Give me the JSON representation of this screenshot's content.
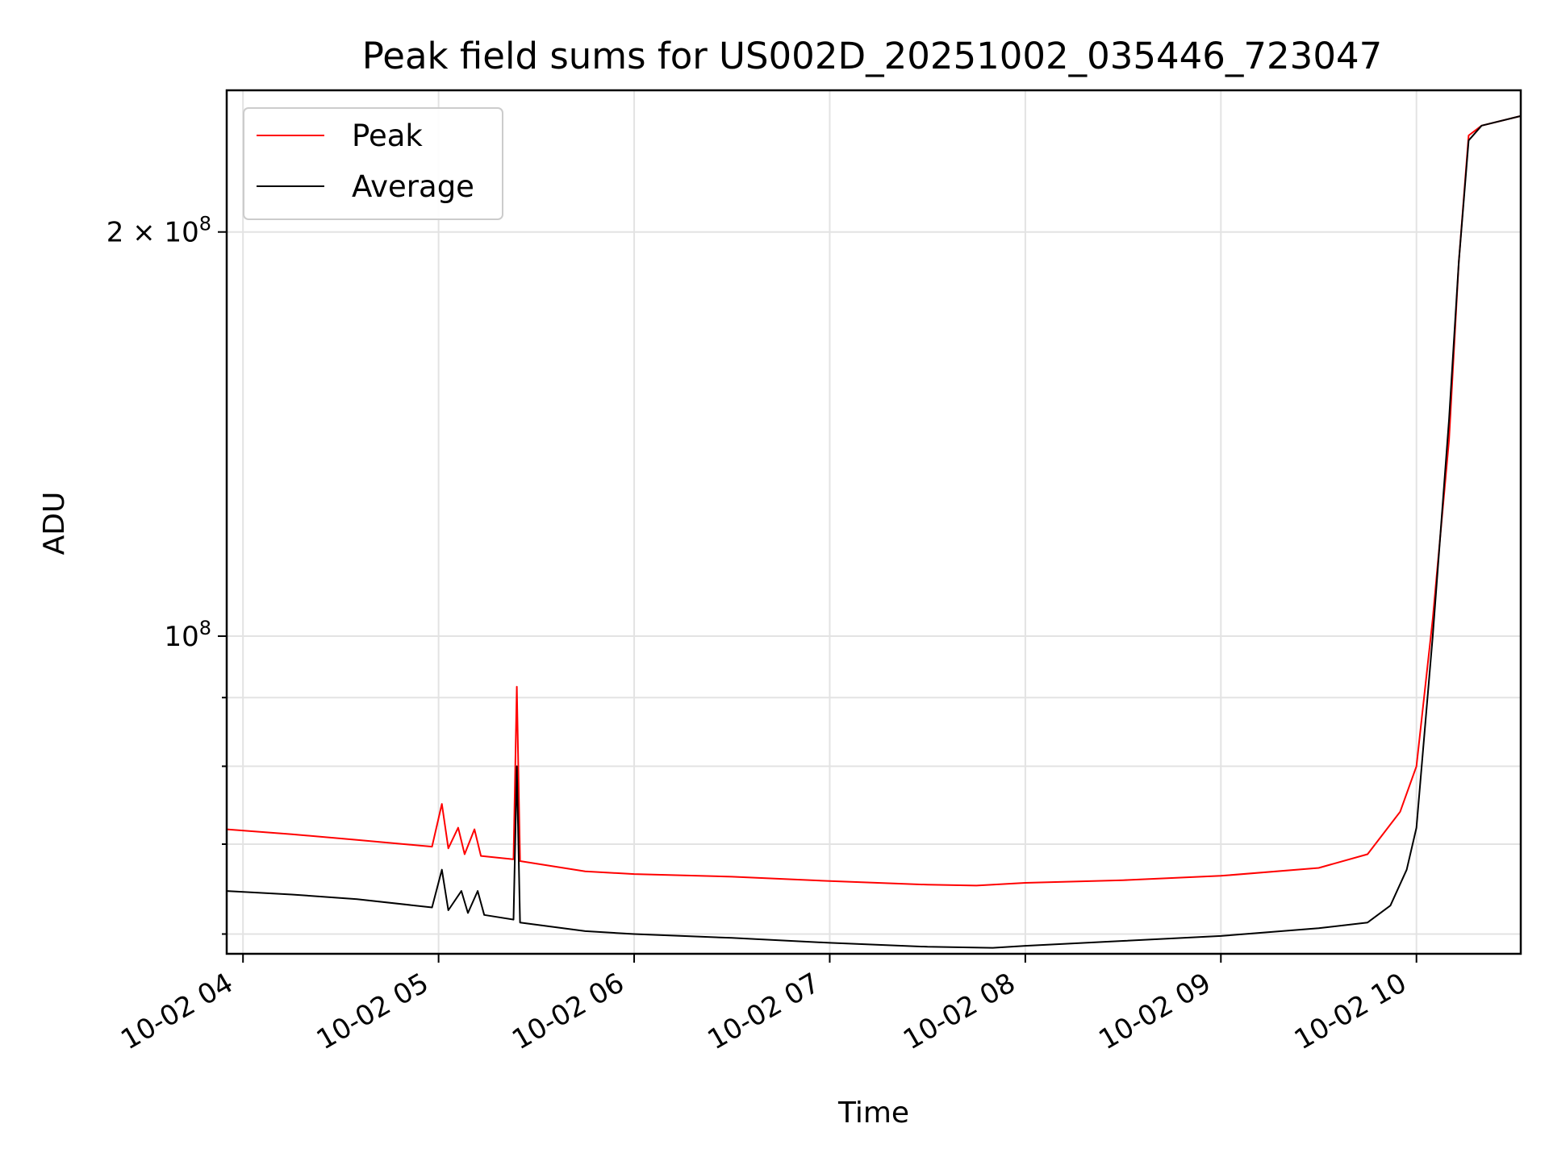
{
  "chart_data": {
    "type": "line",
    "title": "Peak field sums for US002D_20251002_035446_723047",
    "xlabel": "Time",
    "ylabel": "ADU",
    "yscale": "log",
    "grid": true,
    "legend_position": "upper-left",
    "xlim": [
      "2025-10-02 03:55",
      "2025-10-02 10:32"
    ],
    "ylim": [
      58000000,
      255000000
    ],
    "x_ticks": [
      "2025-10-02 04:00",
      "2025-10-02 05:00",
      "2025-10-02 06:00",
      "2025-10-02 07:00",
      "2025-10-02 08:00",
      "2025-10-02 09:00",
      "2025-10-02 10:00"
    ],
    "x_tick_labels": [
      "10-02 04",
      "10-02 05",
      "10-02 06",
      "10-02 07",
      "10-02 08",
      "10-02 09",
      "10-02 10"
    ],
    "y_major_ticks": [
      100000000,
      200000000
    ],
    "y_major_tick_labels": [
      {
        "base": "10",
        "exp": "8",
        "mult": ""
      },
      {
        "base": "10",
        "exp": "8",
        "mult": "2 × "
      }
    ],
    "y_minor_ticks": [
      60000000,
      70000000,
      80000000,
      90000000
    ],
    "series": [
      {
        "name": "Peak",
        "color": "#ff0000",
        "points": [
          [
            "2025-10-02 03:55",
            71800000
          ],
          [
            "2025-10-02 04:15",
            71200000
          ],
          [
            "2025-10-02 04:35",
            70500000
          ],
          [
            "2025-10-02 04:58",
            69700000
          ],
          [
            "2025-10-02 05:01",
            75000000
          ],
          [
            "2025-10-02 05:03",
            69500000
          ],
          [
            "2025-10-02 05:06",
            72000000
          ],
          [
            "2025-10-02 05:08",
            68800000
          ],
          [
            "2025-10-02 05:11",
            71800000
          ],
          [
            "2025-10-02 05:13",
            68600000
          ],
          [
            "2025-10-02 05:23",
            68200000
          ],
          [
            "2025-10-02 05:24",
            91700000
          ],
          [
            "2025-10-02 05:25",
            68000000
          ],
          [
            "2025-10-02 05:45",
            66800000
          ],
          [
            "2025-10-02 06:00",
            66500000
          ],
          [
            "2025-10-02 06:30",
            66200000
          ],
          [
            "2025-10-02 07:00",
            65700000
          ],
          [
            "2025-10-02 07:30",
            65300000
          ],
          [
            "2025-10-02 07:45",
            65200000
          ],
          [
            "2025-10-02 08:00",
            65500000
          ],
          [
            "2025-10-02 08:30",
            65800000
          ],
          [
            "2025-10-02 09:00",
            66300000
          ],
          [
            "2025-10-02 09:30",
            67200000
          ],
          [
            "2025-10-02 09:45",
            68800000
          ],
          [
            "2025-10-02 09:55",
            74000000
          ],
          [
            "2025-10-02 10:00",
            80000000
          ],
          [
            "2025-10-02 10:05",
            103000000
          ],
          [
            "2025-10-02 10:10",
            140000000
          ],
          [
            "2025-10-02 10:13",
            190000000
          ],
          [
            "2025-10-02 10:16",
            236000000
          ],
          [
            "2025-10-02 10:20",
            240000000
          ],
          [
            "2025-10-02 10:32",
            244000000
          ]
        ]
      },
      {
        "name": "Average",
        "color": "#000000",
        "points": [
          [
            "2025-10-02 03:55",
            64600000
          ],
          [
            "2025-10-02 04:15",
            64200000
          ],
          [
            "2025-10-02 04:35",
            63700000
          ],
          [
            "2025-10-02 04:58",
            62800000
          ],
          [
            "2025-10-02 05:01",
            67000000
          ],
          [
            "2025-10-02 05:03",
            62500000
          ],
          [
            "2025-10-02 05:07",
            64600000
          ],
          [
            "2025-10-02 05:09",
            62200000
          ],
          [
            "2025-10-02 05:12",
            64600000
          ],
          [
            "2025-10-02 05:14",
            62000000
          ],
          [
            "2025-10-02 05:23",
            61500000
          ],
          [
            "2025-10-02 05:24",
            80000000
          ],
          [
            "2025-10-02 05:25",
            61200000
          ],
          [
            "2025-10-02 05:45",
            60300000
          ],
          [
            "2025-10-02 06:00",
            60000000
          ],
          [
            "2025-10-02 06:30",
            59600000
          ],
          [
            "2025-10-02 07:00",
            59100000
          ],
          [
            "2025-10-02 07:30",
            58700000
          ],
          [
            "2025-10-02 07:50",
            58600000
          ],
          [
            "2025-10-02 08:00",
            58800000
          ],
          [
            "2025-10-02 08:30",
            59300000
          ],
          [
            "2025-10-02 09:00",
            59800000
          ],
          [
            "2025-10-02 09:30",
            60600000
          ],
          [
            "2025-10-02 09:45",
            61200000
          ],
          [
            "2025-10-02 09:52",
            63000000
          ],
          [
            "2025-10-02 09:57",
            67000000
          ],
          [
            "2025-10-02 10:00",
            72000000
          ],
          [
            "2025-10-02 10:05",
            100000000
          ],
          [
            "2025-10-02 10:10",
            145000000
          ],
          [
            "2025-10-02 10:13",
            190000000
          ],
          [
            "2025-10-02 10:16",
            234000000
          ],
          [
            "2025-10-02 10:20",
            240000000
          ],
          [
            "2025-10-02 10:32",
            244000000
          ]
        ]
      }
    ]
  }
}
